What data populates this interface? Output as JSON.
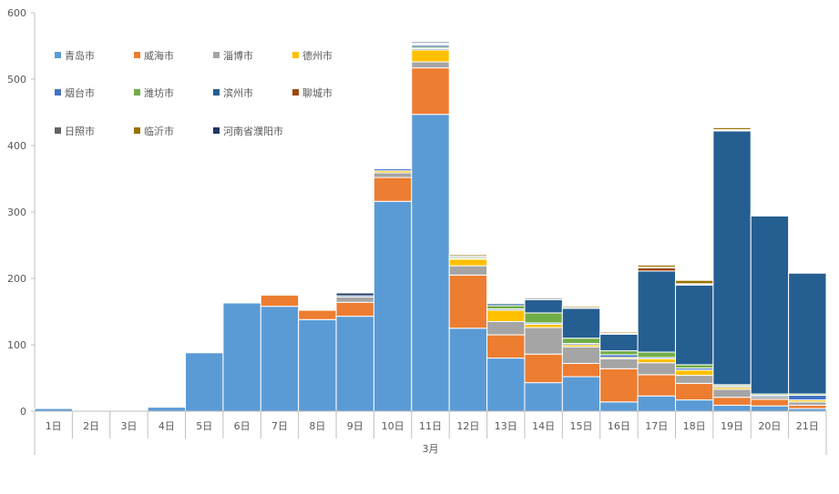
{
  "chart_data": {
    "type": "bar",
    "stacked": true,
    "title": "",
    "xlabel": "3月",
    "ylabel": "",
    "ylim": [
      0,
      600
    ],
    "yticks": [
      0,
      100,
      200,
      300,
      400,
      500,
      600
    ],
    "grid": false,
    "legend_position": "top-left",
    "group_label": "3月",
    "categories": [
      "1日",
      "2日",
      "3日",
      "4日",
      "5日",
      "6日",
      "7日",
      "8日",
      "9日",
      "10日",
      "11日",
      "12日",
      "13日",
      "14日",
      "15日",
      "16日",
      "17日",
      "18日",
      "19日",
      "20日",
      "21日"
    ],
    "series": [
      {
        "name": "青岛市",
        "color": "#5B9BD5",
        "values": [
          4,
          0,
          0,
          6,
          88,
          163,
          158,
          138,
          143,
          316,
          447,
          125,
          80,
          43,
          52,
          14,
          23,
          17,
          9,
          8,
          4
        ]
      },
      {
        "name": "威海市",
        "color": "#ED7D31",
        "values": [
          0,
          0,
          0,
          0,
          0,
          0,
          17,
          14,
          21,
          36,
          70,
          80,
          35,
          43,
          20,
          50,
          32,
          25,
          12,
          10,
          5
        ]
      },
      {
        "name": "淄博市",
        "color": "#A5A5A5",
        "values": [
          0,
          0,
          0,
          0,
          0,
          0,
          0,
          0,
          8,
          7,
          9,
          14,
          20,
          40,
          25,
          15,
          18,
          12,
          12,
          4,
          5
        ]
      },
      {
        "name": "德州市",
        "color": "#FFC000",
        "values": [
          0,
          0,
          0,
          0,
          0,
          0,
          0,
          0,
          0,
          3,
          18,
          10,
          17,
          5,
          3,
          2,
          6,
          8,
          3,
          0,
          3
        ]
      },
      {
        "name": "烟台市",
        "color": "#4472C4",
        "values": [
          0,
          0,
          0,
          0,
          0,
          0,
          0,
          0,
          0,
          3,
          2,
          1,
          2,
          2,
          2,
          4,
          2,
          3,
          2,
          2,
          7
        ]
      },
      {
        "name": "潍坊市",
        "color": "#70AD47",
        "values": [
          0,
          0,
          0,
          0,
          0,
          0,
          0,
          0,
          0,
          1,
          2,
          2,
          5,
          15,
          8,
          6,
          8,
          5,
          2,
          2,
          2
        ]
      },
      {
        "name": "滨州市",
        "color": "#255E91",
        "values": [
          0,
          0,
          0,
          0,
          0,
          0,
          0,
          0,
          2,
          0,
          3,
          0,
          3,
          20,
          45,
          25,
          122,
          120,
          382,
          268,
          182
        ]
      },
      {
        "name": "聊城市",
        "color": "#9E480E",
        "values": [
          0,
          0,
          0,
          0,
          0,
          0,
          1,
          1,
          0,
          1,
          1,
          0,
          0,
          0,
          0,
          0,
          5,
          1,
          1,
          0,
          0
        ]
      },
      {
        "name": "日照市",
        "color": "#636363",
        "values": [
          0,
          0,
          0,
          0,
          0,
          0,
          0,
          0,
          0,
          0,
          1,
          2,
          1,
          2,
          1,
          1,
          1,
          1,
          1,
          1,
          1
        ]
      },
      {
        "name": "临沂市",
        "color": "#997300",
        "values": [
          0,
          0,
          0,
          0,
          0,
          0,
          0,
          0,
          0,
          0,
          1,
          2,
          0,
          0,
          2,
          2,
          3,
          5,
          3,
          1,
          0
        ]
      },
      {
        "name": "河南省濮阳市",
        "color": "#1F3864",
        "values": [
          0,
          0,
          0,
          0,
          0,
          0,
          0,
          0,
          4,
          0,
          2,
          0,
          0,
          0,
          0,
          0,
          0,
          0,
          0,
          0,
          0
        ]
      }
    ]
  }
}
